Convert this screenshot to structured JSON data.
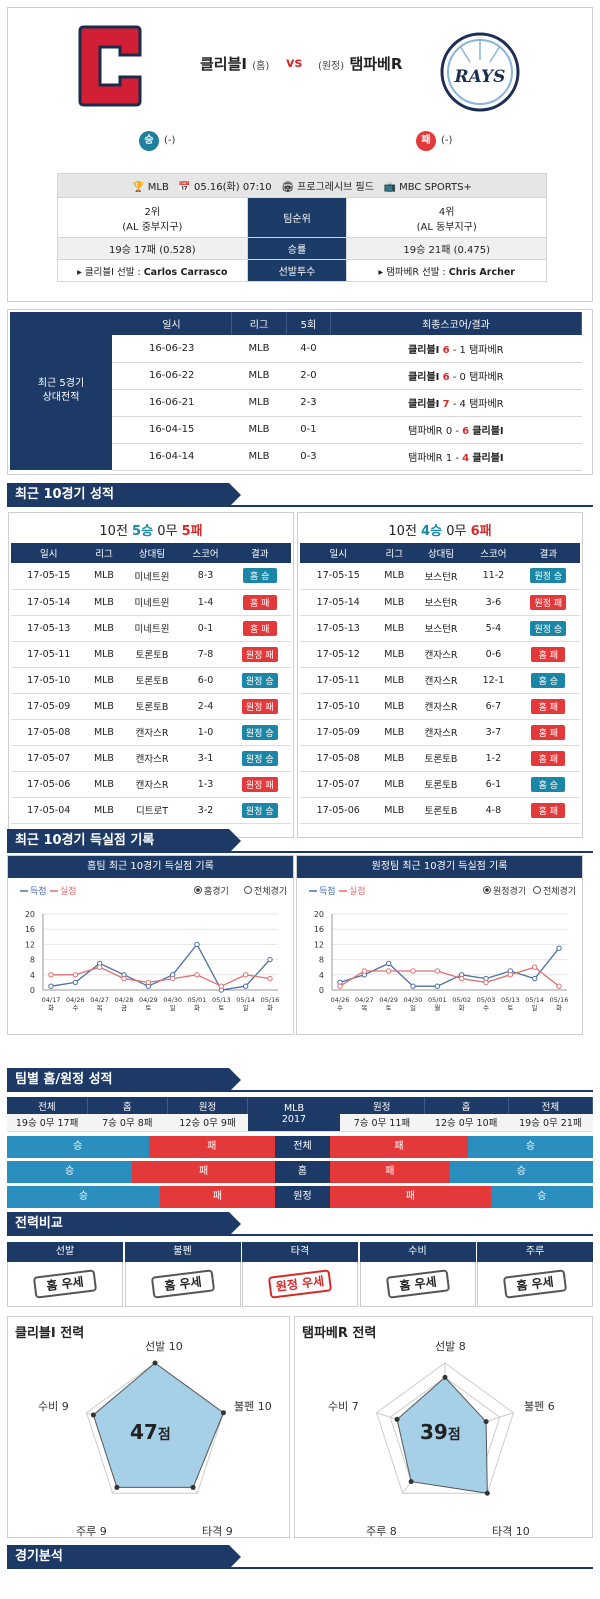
{
  "header": {
    "home_team": "클리블I",
    "home_tag": "(홈)",
    "vs": "vs",
    "away_tag": "(원정)",
    "away_team": "탬파베R",
    "home_result": "승",
    "home_result_note": "(-)",
    "away_result": "패",
    "away_result_note": "(-)",
    "away_logo_text": "RAYS"
  },
  "info": {
    "league": "MLB",
    "datetime": "05.16(화) 07:10",
    "stadium": "프로그레시브 필드",
    "broadcast": "MBC SPORTS+",
    "home_rank": "2위",
    "home_division": "(AL 중부지구)",
    "rank_label": "팀순위",
    "away_rank": "4위",
    "away_division": "(AL 동부지구)",
    "home_record": "19승 17패 (0.528)",
    "record_label": "승률",
    "away_record": "19승 21패 (0.475)",
    "home_pitcher_label": "▸ 클리블I 선발 :",
    "home_pitcher": "Carlos Carrasco",
    "pitcher_label": "선발투수",
    "away_pitcher_label": "▸ 탬파베R 선발 :",
    "away_pitcher": "Chris Archer"
  },
  "h2h": {
    "side_label_1": "최근 5경기",
    "side_label_2": "상대전적",
    "headers": [
      "일시",
      "리그",
      "5회",
      "최종스코어/결과"
    ],
    "rows": [
      {
        "date": "16-06-23",
        "league": "MLB",
        "five": "4-0",
        "left": "클리블I",
        "ls": "6",
        "rs": "1",
        "right": "탬파베R",
        "win": "left"
      },
      {
        "date": "16-06-22",
        "league": "MLB",
        "five": "2-0",
        "left": "클리블I",
        "ls": "6",
        "rs": "0",
        "right": "탬파베R",
        "win": "left"
      },
      {
        "date": "16-06-21",
        "league": "MLB",
        "five": "2-3",
        "left": "클리블I",
        "ls": "7",
        "rs": "4",
        "right": "탬파베R",
        "win": "left"
      },
      {
        "date": "16-04-15",
        "league": "MLB",
        "five": "0-1",
        "left": "탬파베R",
        "ls": "0",
        "rs": "6",
        "right": "클리블I",
        "win": "right"
      },
      {
        "date": "16-04-14",
        "league": "MLB",
        "five": "0-3",
        "left": "탬파베R",
        "ls": "1",
        "rs": "4",
        "right": "클리블I",
        "win": "right"
      }
    ]
  },
  "sections": {
    "recent10": "최근 10경기 성적",
    "scoring10": "최근 10경기 득실점 기록",
    "homeaway": "팀별 홈/원정 성적",
    "compare": "전력비교",
    "analysis": "경기분석"
  },
  "recent": {
    "headers": [
      "일시",
      "리그",
      "상대팀",
      "스코어",
      "결과"
    ],
    "home": {
      "prefix": "10전 ",
      "wins": "5승",
      "draws": "0무",
      "losses": "5패",
      "rows": [
        [
          "17-05-15",
          "MLB",
          "미네트윈",
          "8-3",
          "홈 승",
          "w"
        ],
        [
          "17-05-14",
          "MLB",
          "미네트윈",
          "1-4",
          "홈 패",
          "l"
        ],
        [
          "17-05-13",
          "MLB",
          "미네트윈",
          "0-1",
          "홈 패",
          "l"
        ],
        [
          "17-05-11",
          "MLB",
          "토론토B",
          "7-8",
          "원정 패",
          "l"
        ],
        [
          "17-05-10",
          "MLB",
          "토론토B",
          "6-0",
          "원정 승",
          "w"
        ],
        [
          "17-05-09",
          "MLB",
          "토론토B",
          "2-4",
          "원정 패",
          "l"
        ],
        [
          "17-05-08",
          "MLB",
          "캔자스R",
          "1-0",
          "원정 승",
          "w"
        ],
        [
          "17-05-07",
          "MLB",
          "캔자스R",
          "3-1",
          "원정 승",
          "w"
        ],
        [
          "17-05-06",
          "MLB",
          "캔자스R",
          "1-3",
          "원정 패",
          "l"
        ],
        [
          "17-05-04",
          "MLB",
          "디트로T",
          "3-2",
          "원정 승",
          "w"
        ]
      ]
    },
    "away": {
      "prefix": "10전 ",
      "wins": "4승",
      "draws": "0무",
      "losses": "6패",
      "rows": [
        [
          "17-05-15",
          "MLB",
          "보스턴R",
          "11-2",
          "원정 승",
          "w"
        ],
        [
          "17-05-14",
          "MLB",
          "보스턴R",
          "3-6",
          "원정 패",
          "l"
        ],
        [
          "17-05-13",
          "MLB",
          "보스턴R",
          "5-4",
          "원정 승",
          "w"
        ],
        [
          "17-05-12",
          "MLB",
          "캔자스R",
          "0-6",
          "홈 패",
          "l"
        ],
        [
          "17-05-11",
          "MLB",
          "캔자스R",
          "12-1",
          "홈 승",
          "w"
        ],
        [
          "17-05-10",
          "MLB",
          "캔자스R",
          "6-7",
          "홈 패",
          "l"
        ],
        [
          "17-05-09",
          "MLB",
          "캔자스R",
          "3-7",
          "홈 패",
          "l"
        ],
        [
          "17-05-08",
          "MLB",
          "토론토B",
          "1-2",
          "홈 패",
          "l"
        ],
        [
          "17-05-07",
          "MLB",
          "토론토B",
          "6-1",
          "홈 승",
          "w"
        ],
        [
          "17-05-06",
          "MLB",
          "토론토B",
          "4-8",
          "홈 패",
          "l"
        ]
      ]
    }
  },
  "chart_data": [
    {
      "type": "line",
      "title": "홈팀 최근 10경기 득실점 기록",
      "legend": [
        "득점",
        "실점"
      ],
      "radio": [
        "홈경기",
        "전체경기"
      ],
      "categories": [
        "04/17 화",
        "04/26 수",
        "04/27 목",
        "04/28 금",
        "04/29 토",
        "04/30 일",
        "05/01 화",
        "05/13 토",
        "05/14 일",
        "05/16 화"
      ],
      "series": [
        {
          "name": "득점",
          "color": "#4a6fa5",
          "values": [
            1,
            2,
            7,
            4,
            1,
            4,
            12,
            0,
            1,
            8
          ]
        },
        {
          "name": "실점",
          "color": "#e07070",
          "values": [
            4,
            4,
            6,
            3,
            2,
            3,
            4,
            1,
            4,
            3
          ]
        }
      ],
      "yticks": [
        0,
        4,
        8,
        12,
        16,
        20
      ],
      "ylim": [
        0,
        20
      ]
    },
    {
      "type": "line",
      "title": "원정팀 최근 10경기 득실점 기록",
      "legend": [
        "득점",
        "실점"
      ],
      "radio": [
        "원정경기",
        "전체경기"
      ],
      "categories": [
        "04/26 수",
        "04/27 목",
        "04/29 토",
        "04/30 일",
        "05/01 월",
        "05/02 화",
        "05/03 수",
        "05/13 토",
        "05/14 일",
        "05/16 화"
      ],
      "series": [
        {
          "name": "득점",
          "color": "#4a6fa5",
          "values": [
            2,
            4,
            7,
            1,
            1,
            4,
            3,
            5,
            3,
            11
          ]
        },
        {
          "name": "실점",
          "color": "#e07070",
          "values": [
            1,
            5,
            5,
            5,
            5,
            3,
            2,
            4,
            6,
            1
          ]
        }
      ],
      "yticks": [
        0,
        4,
        8,
        12,
        16,
        20
      ],
      "ylim": [
        0,
        20
      ]
    }
  ],
  "homeaway": {
    "headers_left": [
      "전체",
      "홈",
      "원정"
    ],
    "values_left": [
      "19승 0무 17패",
      "7승 0무 8패",
      "12승 0무 9패"
    ],
    "mid_1": "MLB",
    "mid_2": "2017",
    "headers_right": [
      "원정",
      "홈",
      "전체"
    ],
    "values_right": [
      "7승 0무 11패",
      "12승 0무 10패",
      "19승 0무 21패"
    ],
    "bars": [
      {
        "label": "전체",
        "lw": "승",
        "ll": "패",
        "rl": "패",
        "rw": "승",
        "home_win_pct": 52.8,
        "away_win_pct": 47.5
      },
      {
        "label": "홈",
        "lw": "승",
        "ll": "패",
        "rl": "패",
        "rw": "승",
        "home_win_pct": 46.7,
        "away_win_pct": 54.5
      },
      {
        "label": "원정",
        "lw": "승",
        "ll": "패",
        "rl": "패",
        "rw": "승",
        "home_win_pct": 57.1,
        "away_win_pct": 38.9
      }
    ]
  },
  "compare": {
    "headers": [
      "선발",
      "불펜",
      "타격",
      "수비",
      "주루"
    ],
    "stamps": [
      "홈 우세",
      "홈 우세",
      "원정 우세",
      "홈 우세",
      "홈 우세"
    ]
  },
  "radar": [
    {
      "title": "클리블I 전력",
      "score": "47",
      "unit": "점",
      "labels": [
        "선발 10",
        "불펜 10",
        "타격 9",
        "주루 9",
        "수비 9"
      ],
      "values": [
        10,
        10,
        9,
        9,
        9
      ],
      "max": 10
    },
    {
      "title": "탬파베R 전력",
      "score": "39",
      "unit": "점",
      "labels": [
        "선발 8",
        "불펜 6",
        "타격 10",
        "주루 8",
        "수비 7"
      ],
      "values": [
        8,
        6,
        10,
        8,
        7
      ],
      "max": 10
    }
  ]
}
